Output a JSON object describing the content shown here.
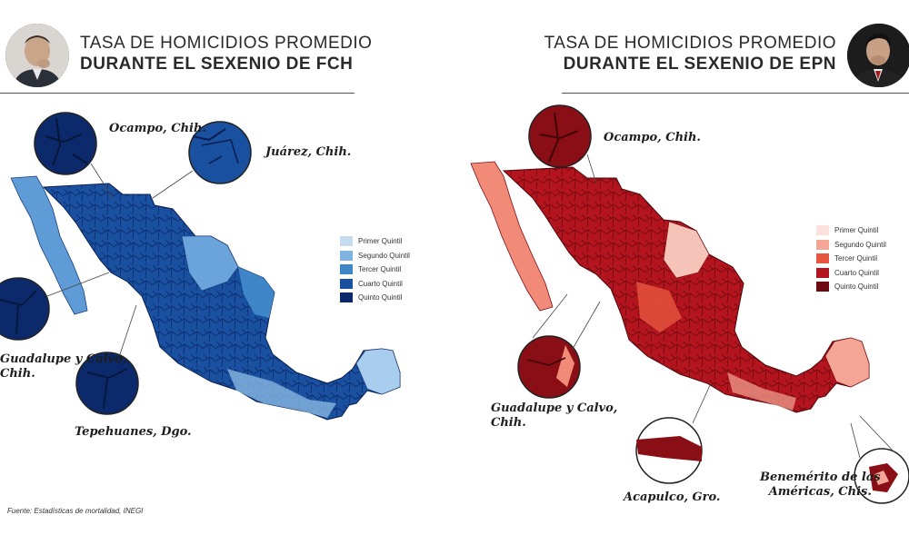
{
  "fch": {
    "title_line1": "TASA DE HOMICIDIOS PROMEDIO",
    "title_line2": "DURANTE EL SEXENIO DE FCH",
    "legend": [
      "Primer Quintil",
      "Segundo Quintil",
      "Tercer Quintil",
      "Cuarto Quintil",
      "Quinto Quintil"
    ],
    "legend_colors": [
      "#c6dbef",
      "#7fb3e0",
      "#3f86c8",
      "#1a50a0",
      "#0c2a6b"
    ],
    "callouts": {
      "ocampo": "Ocampo, Chih.",
      "juarez": "Juárez, Chih.",
      "guadalupe": "Guadalupe y Calvo,\nChih.",
      "tepehuanes": "Tepehuanes, Dgo."
    }
  },
  "epn": {
    "title_line1": "TASA DE HOMICIDIOS PROMEDIO",
    "title_line2": "DURANTE EL SEXENIO DE EPN",
    "legend": [
      "Primer Quintil",
      "Segundo Quintil",
      "Tercer Quintil",
      "Cuarto Quintil",
      "Quinto Quintil"
    ],
    "legend_colors": [
      "#fbe0dc",
      "#f4a595",
      "#e8563f",
      "#b3141d",
      "#6e0a12"
    ],
    "callouts": {
      "ocampo": "Ocampo, Chih.",
      "guadalupe": "Guadalupe y Calvo,\nChih.",
      "acapulco": "Acapulco, Gro.",
      "benemerito": "Benemérito de las\nAméricas, Chis."
    }
  },
  "source": "Fuente: Estadísticas de mortalidad, INEGI"
}
